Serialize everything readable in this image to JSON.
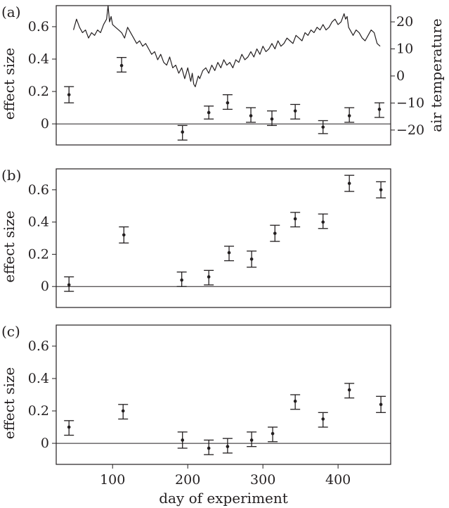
{
  "chart_data": [
    {
      "type": "scatter",
      "panel_label": "(a)",
      "ylabel": "effect size",
      "y2label": "air temperature",
      "xlim": [
        25,
        470
      ],
      "ylim": [
        -0.13,
        0.73
      ],
      "y2lim": [
        -25.5,
        26
      ],
      "yticks": [
        0,
        0.2,
        0.4,
        0.6
      ],
      "y2ticks": [
        -20,
        -10,
        0,
        10,
        20
      ],
      "zero_line": true,
      "series": [
        {
          "points": [
            {
              "x": 42,
              "y": 0.18,
              "lo": 0.13,
              "hi": 0.23
            },
            {
              "x": 112,
              "y": 0.36,
              "lo": 0.32,
              "hi": 0.41
            },
            {
              "x": 193,
              "y": -0.05,
              "lo": -0.1,
              "hi": -0.01
            },
            {
              "x": 228,
              "y": 0.07,
              "lo": 0.03,
              "hi": 0.11
            },
            {
              "x": 253,
              "y": 0.13,
              "lo": 0.09,
              "hi": 0.18
            },
            {
              "x": 284,
              "y": 0.05,
              "lo": 0.01,
              "hi": 0.1
            },
            {
              "x": 312,
              "y": 0.03,
              "lo": -0.01,
              "hi": 0.08
            },
            {
              "x": 343,
              "y": 0.08,
              "lo": 0.03,
              "hi": 0.12
            },
            {
              "x": 380,
              "y": -0.02,
              "lo": -0.06,
              "hi": 0.02
            },
            {
              "x": 415,
              "y": 0.05,
              "lo": 0.01,
              "hi": 0.1
            },
            {
              "x": 455,
              "y": 0.09,
              "lo": 0.04,
              "hi": 0.13
            }
          ]
        },
        {
          "axis": "right",
          "style": "line",
          "x": [
            48,
            52,
            56,
            60,
            64,
            68,
            72,
            76,
            80,
            84,
            88,
            92,
            94,
            96,
            98,
            100,
            104,
            108,
            112,
            116,
            120,
            124,
            128,
            132,
            136,
            140,
            144,
            148,
            152,
            156,
            160,
            164,
            168,
            172,
            176,
            180,
            184,
            188,
            192,
            196,
            200,
            204,
            206,
            208,
            210,
            212,
            214,
            216,
            220,
            224,
            228,
            232,
            236,
            240,
            244,
            248,
            252,
            256,
            260,
            264,
            268,
            272,
            276,
            280,
            284,
            288,
            292,
            296,
            300,
            304,
            308,
            312,
            316,
            320,
            324,
            328,
            332,
            336,
            340,
            344,
            348,
            352,
            356,
            360,
            364,
            368,
            372,
            376,
            380,
            384,
            388,
            392,
            396,
            400,
            404,
            408,
            410,
            412,
            414,
            416,
            418,
            420,
            424,
            428,
            432,
            436,
            440,
            444,
            448,
            452,
            456
          ],
          "y": [
            17,
            21,
            18,
            16,
            17,
            14,
            16,
            15,
            17,
            16,
            19,
            21,
            26,
            20,
            22,
            19,
            18,
            17,
            16,
            14,
            18,
            16,
            14,
            12,
            13,
            11,
            12,
            10,
            8,
            9,
            6,
            8,
            5,
            4,
            7,
            3,
            4,
            1,
            3,
            -1,
            3,
            -2,
            1,
            -3,
            -4,
            -2,
            0,
            -1,
            2,
            3,
            1,
            4,
            2,
            5,
            3,
            6,
            4,
            5,
            3,
            6,
            5,
            8,
            6,
            7,
            9,
            7,
            10,
            8,
            11,
            9,
            10,
            12,
            10,
            13,
            11,
            12,
            14,
            13,
            12,
            15,
            14,
            13,
            16,
            15,
            17,
            16,
            18,
            17,
            19,
            17,
            18,
            20,
            21,
            19,
            20,
            23,
            21,
            22,
            18,
            17,
            16,
            15,
            17,
            16,
            14,
            13,
            15,
            17,
            16,
            12,
            11
          ]
        }
      ]
    },
    {
      "type": "scatter",
      "panel_label": "(b)",
      "ylabel": "effect size",
      "xlim": [
        25,
        470
      ],
      "ylim": [
        -0.13,
        0.73
      ],
      "yticks": [
        0,
        0.2,
        0.4,
        0.6
      ],
      "zero_line": true,
      "series": [
        {
          "points": [
            {
              "x": 42,
              "y": 0.01,
              "lo": -0.03,
              "hi": 0.06
            },
            {
              "x": 115,
              "y": 0.32,
              "lo": 0.27,
              "hi": 0.37
            },
            {
              "x": 192,
              "y": 0.04,
              "lo": 0.0,
              "hi": 0.09
            },
            {
              "x": 228,
              "y": 0.06,
              "lo": 0.01,
              "hi": 0.1
            },
            {
              "x": 255,
              "y": 0.21,
              "lo": 0.16,
              "hi": 0.25
            },
            {
              "x": 285,
              "y": 0.17,
              "lo": 0.12,
              "hi": 0.22
            },
            {
              "x": 316,
              "y": 0.33,
              "lo": 0.28,
              "hi": 0.38
            },
            {
              "x": 343,
              "y": 0.42,
              "lo": 0.37,
              "hi": 0.46
            },
            {
              "x": 380,
              "y": 0.4,
              "lo": 0.36,
              "hi": 0.45
            },
            {
              "x": 415,
              "y": 0.64,
              "lo": 0.59,
              "hi": 0.69
            },
            {
              "x": 457,
              "y": 0.6,
              "lo": 0.55,
              "hi": 0.65
            }
          ]
        }
      ]
    },
    {
      "type": "scatter",
      "panel_label": "(c)",
      "ylabel": "effect size",
      "xlabel": "day of experiment",
      "xlim": [
        25,
        470
      ],
      "xticks": [
        100,
        200,
        300,
        400
      ],
      "ylim": [
        -0.13,
        0.73
      ],
      "yticks": [
        0,
        0.2,
        0.4,
        0.6
      ],
      "zero_line": true,
      "series": [
        {
          "points": [
            {
              "x": 42,
              "y": 0.1,
              "lo": 0.05,
              "hi": 0.14
            },
            {
              "x": 114,
              "y": 0.2,
              "lo": 0.15,
              "hi": 0.24
            },
            {
              "x": 193,
              "y": 0.02,
              "lo": -0.03,
              "hi": 0.07
            },
            {
              "x": 228,
              "y": -0.03,
              "lo": -0.07,
              "hi": 0.02
            },
            {
              "x": 253,
              "y": -0.02,
              "lo": -0.06,
              "hi": 0.03
            },
            {
              "x": 285,
              "y": 0.02,
              "lo": -0.02,
              "hi": 0.07
            },
            {
              "x": 313,
              "y": 0.06,
              "lo": 0.01,
              "hi": 0.1
            },
            {
              "x": 343,
              "y": 0.26,
              "lo": 0.21,
              "hi": 0.3
            },
            {
              "x": 380,
              "y": 0.15,
              "lo": 0.1,
              "hi": 0.19
            },
            {
              "x": 415,
              "y": 0.33,
              "lo": 0.28,
              "hi": 0.37
            },
            {
              "x": 457,
              "y": 0.24,
              "lo": 0.19,
              "hi": 0.29
            }
          ]
        }
      ]
    }
  ]
}
